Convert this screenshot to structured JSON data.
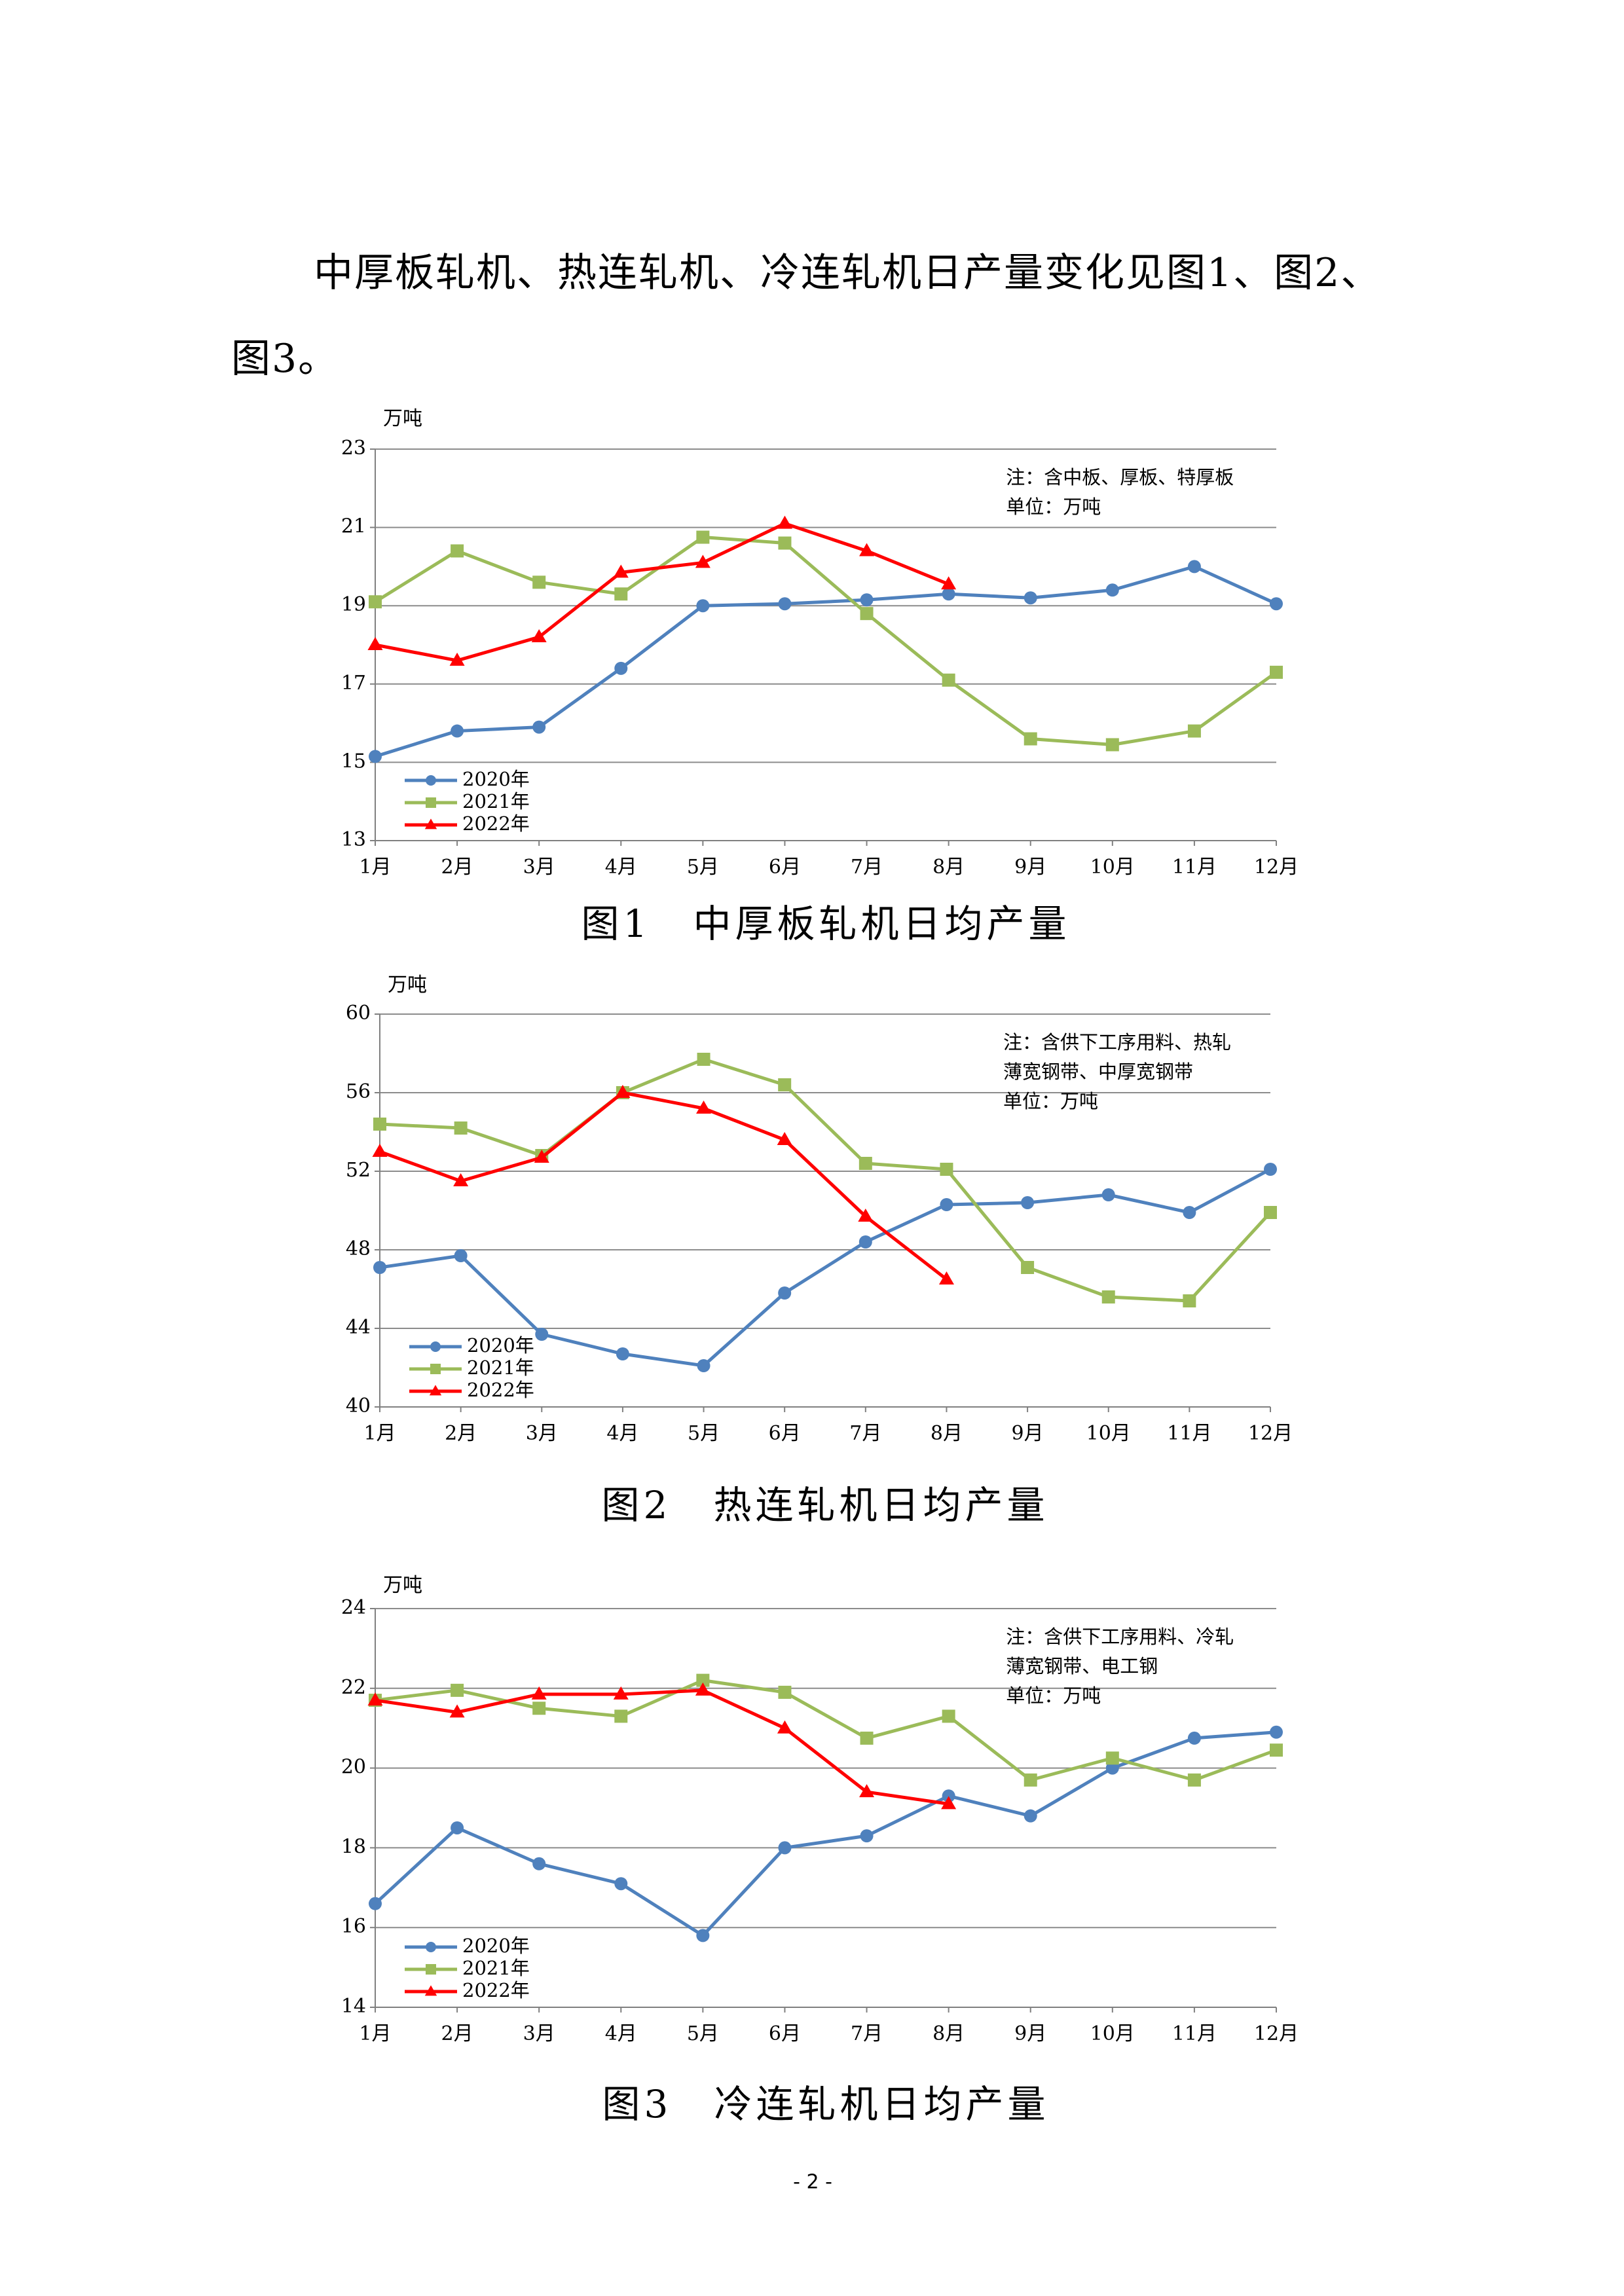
{
  "paragraph": "中厚板轧机、热连轧机、冷连轧机日产量变化见图1、图2、图3。",
  "page_number": "- 2 -",
  "chart_data": [
    {
      "type": "line",
      "title": "图1　中厚板轧机日均产量",
      "y_label": "万吨",
      "notes": [
        "注：含中板、厚板、特厚板",
        "单位：万吨"
      ],
      "categories": [
        "1月",
        "2月",
        "3月",
        "4月",
        "5月",
        "6月",
        "7月",
        "8月",
        "9月",
        "10月",
        "11月",
        "12月"
      ],
      "series": [
        {
          "name": "2020年",
          "color": "#4f81bd",
          "marker": "circle",
          "values": [
            15.15,
            15.8,
            15.9,
            17.4,
            19.0,
            19.05,
            19.15,
            19.3,
            19.2,
            19.4,
            20.0,
            19.05
          ]
        },
        {
          "name": "2021年",
          "color": "#9bbb59",
          "marker": "square",
          "values": [
            19.1,
            20.4,
            19.6,
            19.3,
            20.75,
            20.6,
            18.8,
            17.1,
            15.6,
            15.45,
            15.8,
            17.3
          ]
        },
        {
          "name": "2022年",
          "color": "#ff0000",
          "marker": "triangle",
          "values": [
            18.0,
            17.6,
            18.2,
            19.85,
            20.1,
            21.1,
            20.4,
            19.55,
            null,
            null,
            null,
            null
          ]
        }
      ],
      "ylim": [
        13,
        23
      ],
      "yticks": [
        13,
        15,
        17,
        19,
        21,
        23
      ],
      "grid": true,
      "legend": "lower left"
    },
    {
      "type": "line",
      "title": "图2　热连轧机日均产量",
      "y_label": "万吨",
      "notes": [
        "注：含供下工序用料、热轧",
        "薄宽钢带、中厚宽钢带",
        "单位：万吨"
      ],
      "categories": [
        "1月",
        "2月",
        "3月",
        "4月",
        "5月",
        "6月",
        "7月",
        "8月",
        "9月",
        "10月",
        "11月",
        "12月"
      ],
      "series": [
        {
          "name": "2020年",
          "color": "#4f81bd",
          "marker": "circle",
          "values": [
            47.1,
            47.7,
            43.7,
            42.7,
            42.1,
            45.8,
            48.4,
            50.3,
            50.4,
            50.8,
            49.9,
            52.1
          ]
        },
        {
          "name": "2021年",
          "color": "#9bbb59",
          "marker": "square",
          "values": [
            54.4,
            54.2,
            52.8,
            56.0,
            57.7,
            56.4,
            52.4,
            52.1,
            47.1,
            45.6,
            45.4,
            49.9
          ]
        },
        {
          "name": "2022年",
          "color": "#ff0000",
          "marker": "triangle",
          "values": [
            53.0,
            51.5,
            52.7,
            56.0,
            55.2,
            53.6,
            49.7,
            46.5,
            null,
            null,
            null,
            null
          ]
        }
      ],
      "ylim": [
        40,
        60
      ],
      "yticks": [
        40,
        44,
        48,
        52,
        56,
        60
      ],
      "grid": true,
      "legend": "lower left"
    },
    {
      "type": "line",
      "title": "图3　冷连轧机日均产量",
      "y_label": "万吨",
      "notes": [
        "注：含供下工序用料、冷轧",
        "薄宽钢带、电工钢",
        "单位：万吨"
      ],
      "categories": [
        "1月",
        "2月",
        "3月",
        "4月",
        "5月",
        "6月",
        "7月",
        "8月",
        "9月",
        "10月",
        "11月",
        "12月"
      ],
      "series": [
        {
          "name": "2020年",
          "color": "#4f81bd",
          "marker": "circle",
          "values": [
            16.6,
            18.5,
            17.6,
            17.1,
            15.8,
            18.0,
            18.3,
            19.3,
            18.8,
            20.0,
            20.75,
            20.9
          ]
        },
        {
          "name": "2021年",
          "color": "#9bbb59",
          "marker": "square",
          "values": [
            21.7,
            21.95,
            21.5,
            21.3,
            22.2,
            21.9,
            20.75,
            21.3,
            19.7,
            20.25,
            19.7,
            20.45
          ]
        },
        {
          "name": "2022年",
          "color": "#ff0000",
          "marker": "triangle",
          "values": [
            21.7,
            21.4,
            21.85,
            21.85,
            21.95,
            21.0,
            19.4,
            19.1,
            null,
            null,
            null,
            null
          ]
        }
      ],
      "ylim": [
        14,
        24
      ],
      "yticks": [
        14,
        16,
        18,
        20,
        22,
        24
      ],
      "grid": true,
      "legend": "lower left"
    }
  ]
}
